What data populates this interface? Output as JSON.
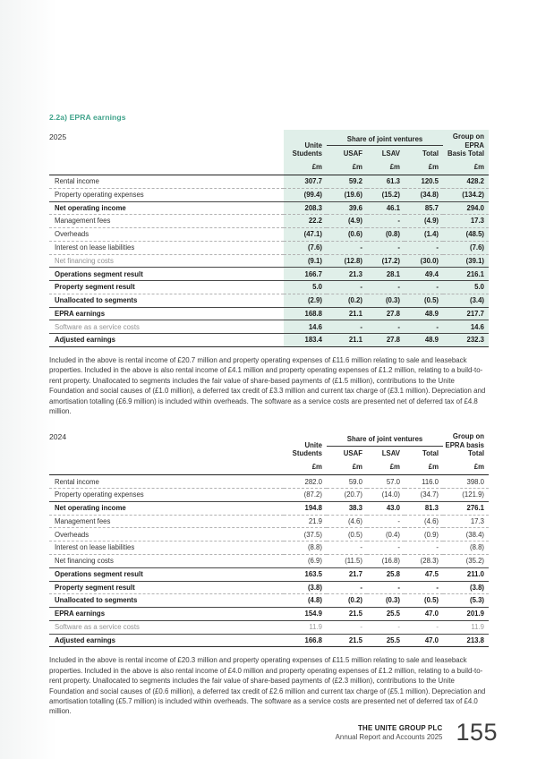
{
  "section_title": "2.2a) EPRA earnings",
  "colors": {
    "accent_teal": "#3FA28A",
    "shade_mint": "#E0EFE9"
  },
  "tables": [
    {
      "year": "2025",
      "jv_header": "Share of joint ventures",
      "shaded": true,
      "values_bold": true,
      "columns": [
        {
          "label": "Unite Students",
          "unit": "£m"
        },
        {
          "label": "USAF",
          "unit": "£m"
        },
        {
          "label": "LSAV",
          "unit": "£m"
        },
        {
          "label": "Total",
          "unit": "£m"
        },
        {
          "label": "Group on EPRA Basis Total",
          "unit": "£m"
        }
      ],
      "rows": [
        {
          "label": "Rental income",
          "values": [
            "307.7",
            "59.2",
            "61.3",
            "120.5",
            "428.2"
          ],
          "rule": "none"
        },
        {
          "label": "Property operating expenses",
          "values": [
            "(99.4)",
            "(19.6)",
            "(15.2)",
            "(34.8)",
            "(134.2)"
          ],
          "rule": "dashed"
        },
        {
          "label": "Net operating income",
          "values": [
            "208.3",
            "39.6",
            "46.1",
            "85.7",
            "294.0"
          ],
          "rule": "solid",
          "bold": true
        },
        {
          "label": "Management fees",
          "values": [
            "22.2",
            "(4.9)",
            "-",
            "(4.9)",
            "17.3"
          ],
          "rule": "dashed"
        },
        {
          "label": "Overheads",
          "values": [
            "(47.1)",
            "(0.6)",
            "(0.8)",
            "(1.4)",
            "(48.5)"
          ],
          "rule": "dashed"
        },
        {
          "label": "Interest on lease liabilities",
          "values": [
            "(7.6)",
            "-",
            "-",
            "-",
            "(7.6)"
          ],
          "rule": "dashed"
        },
        {
          "label": "Net financing costs",
          "values": [
            "(9.1)",
            "(12.8)",
            "(17.2)",
            "(30.0)",
            "(39.1)"
          ],
          "rule": "dashed",
          "gray": true
        },
        {
          "label": "Operations segment result",
          "values": [
            "166.7",
            "21.3",
            "28.1",
            "49.4",
            "216.1"
          ],
          "rule": "solid",
          "bold": true
        },
        {
          "label": "Property segment result",
          "values": [
            "5.0",
            "-",
            "-",
            "-",
            "5.0"
          ],
          "rule": "solid",
          "bold": true
        },
        {
          "label": "Unallocated to segments",
          "values": [
            "(2.9)",
            "(0.2)",
            "(0.3)",
            "(0.5)",
            "(3.4)"
          ],
          "rule": "dashed",
          "bold": true
        },
        {
          "label": "EPRA earnings",
          "values": [
            "168.8",
            "21.1",
            "27.8",
            "48.9",
            "217.7"
          ],
          "rule": "solid",
          "bold": true
        },
        {
          "label": "Software as a service costs",
          "values": [
            "14.6",
            "-",
            "-",
            "-",
            "14.6"
          ],
          "rule": "solid",
          "gray": true
        },
        {
          "label": "Adjusted earnings",
          "values": [
            "183.4",
            "21.1",
            "27.8",
            "48.9",
            "232.3"
          ],
          "rule": "solid",
          "bold": true,
          "bottom": true
        }
      ],
      "note": "Included in the above is rental income of £20.7 million and property operating expenses of £11.6 million relating to sale and leaseback properties. Included in the above is also rental income of £4.1 million and property operating expenses of £1.2 million, relating to a build-to-rent property. Unallocated to segments includes the fair value of share-based payments of (£1.5 million), contributions to the Unite Foundation and social causes of (£1.0 million), a deferred tax credit of £3.3 million and current tax charge of (£3.1 million). Depreciation and amortisation totalling (£6.9 million) is included within overheads. The software as a service costs are presented net of deferred tax of £4.8 million."
    },
    {
      "year": "2024",
      "jv_header": "Share of joint ventures",
      "shaded": false,
      "values_bold": false,
      "columns": [
        {
          "label": "Unite Students",
          "unit": "£m"
        },
        {
          "label": "USAF",
          "unit": "£m"
        },
        {
          "label": "LSAV",
          "unit": "£m"
        },
        {
          "label": "Total",
          "unit": "£m"
        },
        {
          "label": "Group on EPRA basis Total",
          "unit": "£m"
        }
      ],
      "rows": [
        {
          "label": "Rental income",
          "values": [
            "282.0",
            "59.0",
            "57.0",
            "116.0",
            "398.0"
          ],
          "rule": "none"
        },
        {
          "label": "Property operating expenses",
          "values": [
            "(87.2)",
            "(20.7)",
            "(14.0)",
            "(34.7)",
            "(121.9)"
          ],
          "rule": "dashed"
        },
        {
          "label": "Net operating income",
          "values": [
            "194.8",
            "38.3",
            "43.0",
            "81.3",
            "276.1"
          ],
          "rule": "solid",
          "bold": true
        },
        {
          "label": "Management fees",
          "values": [
            "21.9",
            "(4.6)",
            "-",
            "(4.6)",
            "17.3"
          ],
          "rule": "dashed"
        },
        {
          "label": "Overheads",
          "values": [
            "(37.5)",
            "(0.5)",
            "(0.4)",
            "(0.9)",
            "(38.4)"
          ],
          "rule": "dashed"
        },
        {
          "label": "Interest on lease liabilities",
          "values": [
            "(8.8)",
            "-",
            "-",
            "-",
            "(8.8)"
          ],
          "rule": "dashed"
        },
        {
          "label": "Net financing costs",
          "values": [
            "(6.9)",
            "(11.5)",
            "(16.8)",
            "(28.3)",
            "(35.2)"
          ],
          "rule": "dashed"
        },
        {
          "label": "Operations segment result",
          "values": [
            "163.5",
            "21.7",
            "25.8",
            "47.5",
            "211.0"
          ],
          "rule": "solid",
          "bold": true
        },
        {
          "label": "Property segment result",
          "values": [
            "(3.8)",
            "-",
            "-",
            "-",
            "(3.8)"
          ],
          "rule": "solid",
          "bold": true
        },
        {
          "label": "Unallocated to segments",
          "values": [
            "(4.8)",
            "(0.2)",
            "(0.3)",
            "(0.5)",
            "(5.3)"
          ],
          "rule": "dashed",
          "bold": true
        },
        {
          "label": "EPRA earnings",
          "values": [
            "154.9",
            "21.5",
            "25.5",
            "47.0",
            "201.9"
          ],
          "rule": "solid",
          "bold": true
        },
        {
          "label": "Software as a service costs",
          "values": [
            "11.9",
            "-",
            "-",
            "-",
            "11.9"
          ],
          "rule": "solid",
          "gray": true,
          "gray_values": true
        },
        {
          "label": "Adjusted earnings",
          "values": [
            "166.8",
            "21.5",
            "25.5",
            "47.0",
            "213.8"
          ],
          "rule": "solid",
          "bold": true,
          "bottom": true
        }
      ],
      "note": "Included in the above is rental income of £20.3 million and property operating expenses of £11.5 million relating to sale and leaseback properties. Included in the above is also rental income of £4.0 million and property operating expenses of £1.2 million, relating to a build-to-rent property. Unallocated to segments includes the fair value of share-based payments of (£2.3 million), contributions to the Unite Foundation and social causes of (£0.6 million), a deferred tax credit of £2.6 million and current tax charge of (£5.1 million). Depreciation and amortisation totalling (£5.7 million) is included within overheads. The software as a service costs are presented net of deferred tax of £4.0 million."
    }
  ],
  "footer": {
    "company": "THE UNITE GROUP PLC",
    "subtitle": "Annual Report and Accounts 2025",
    "page_number": "155"
  }
}
